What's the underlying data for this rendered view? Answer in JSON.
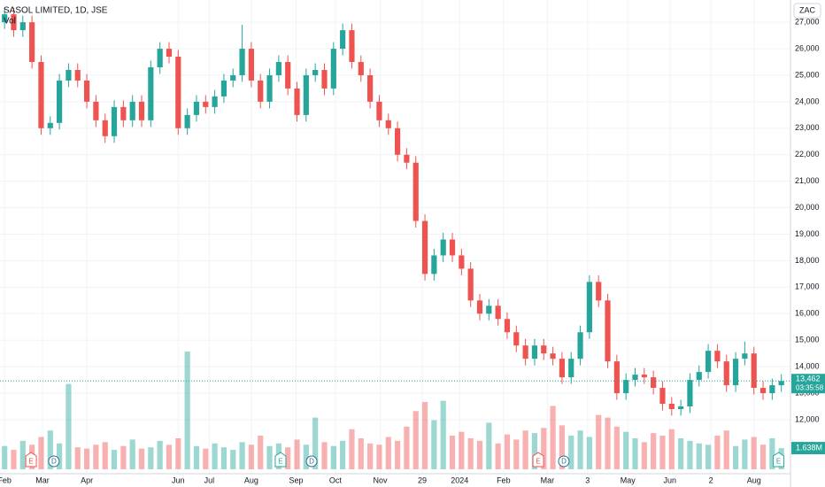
{
  "chart_data": {
    "type": "candlestick",
    "title": "SASOL LIMITED, 1D, JSE",
    "volume_title": "Vol",
    "currency": "ZAC",
    "up_color": "#26a69a",
    "down_color": "#ef5350",
    "grid": true,
    "ylim": [
      9960,
      27840
    ],
    "yticks": [
      {
        "value": 12000,
        "label": "12,000"
      },
      {
        "value": 13000,
        "label": "13,000"
      },
      {
        "value": 14000,
        "label": "14,000"
      },
      {
        "value": 15000,
        "label": "15,000"
      },
      {
        "value": 16000,
        "label": "16,000"
      },
      {
        "value": 17000,
        "label": "17,000"
      },
      {
        "value": 18000,
        "label": "18,000"
      },
      {
        "value": 19000,
        "label": "19,000"
      },
      {
        "value": 20000,
        "label": "20,000"
      },
      {
        "value": 21000,
        "label": "21,000"
      },
      {
        "value": 22000,
        "label": "22,000"
      },
      {
        "value": 23000,
        "label": "23,000"
      },
      {
        "value": 24000,
        "label": "24,000"
      },
      {
        "value": 25000,
        "label": "25,000"
      },
      {
        "value": 26000,
        "label": "26,000"
      },
      {
        "value": 27000,
        "label": "27,000"
      }
    ],
    "xlim": [
      -0.5,
      86
    ],
    "xticks": [
      {
        "value": 0.0,
        "label": "Feb"
      },
      {
        "value": 4.15,
        "label": "Mar"
      },
      {
        "value": 9.0,
        "label": "Apr"
      },
      {
        "value": 19.0,
        "label": "Jun"
      },
      {
        "value": 22.4,
        "label": "Jul"
      },
      {
        "value": 27.0,
        "label": "Aug"
      },
      {
        "value": 31.9,
        "label": "Sep"
      },
      {
        "value": 36.2,
        "label": "Oct"
      },
      {
        "value": 41.1,
        "label": "Nov"
      },
      {
        "value": 45.7,
        "label": "29"
      },
      {
        "value": 49.8,
        "label": "2024"
      },
      {
        "value": 54.6,
        "label": "Feb"
      },
      {
        "value": 59.4,
        "label": "Mar"
      },
      {
        "value": 63.8,
        "label": "3"
      },
      {
        "value": 68.2,
        "label": "May"
      },
      {
        "value": 72.8,
        "label": "Jun"
      },
      {
        "value": 77.3,
        "label": "2"
      },
      {
        "value": 82.0,
        "label": "Aug"
      }
    ],
    "open": [
      27000,
      27300,
      26700,
      27000,
      25500,
      23000,
      23200,
      24800,
      25200,
      24800,
      24000,
      23300,
      22700,
      23800,
      23300,
      24000,
      23300,
      25300,
      26000,
      25700,
      23000,
      23500,
      24000,
      23800,
      24200,
      24800,
      25000,
      26000,
      24800,
      24000,
      25000,
      25500,
      24500,
      23500,
      25000,
      25200,
      24500,
      26000,
      26700,
      25500,
      25000,
      24000,
      23300,
      23000,
      22000,
      21700,
      19500,
      17500,
      18200,
      18800,
      18200,
      17700,
      16500,
      16000,
      16300,
      15800,
      15300,
      14800,
      14300,
      14800,
      14500,
      14300,
      13600,
      14300,
      15300,
      17200,
      16500,
      14200,
      13000,
      13500,
      13700,
      13600,
      13200,
      12600,
      12400,
      12500,
      13500,
      13800,
      14600,
      14200,
      13300,
      14300,
      14500,
      13200,
      13000,
      13300
    ],
    "high": [
      27550,
      27550,
      27250,
      27250,
      25750,
      23450,
      25050,
      25450,
      25450,
      25050,
      24250,
      23550,
      24050,
      24050,
      24250,
      24250,
      25550,
      26250,
      26250,
      25950,
      23750,
      24250,
      24250,
      24450,
      25050,
      25250,
      26900,
      26250,
      25050,
      25250,
      25750,
      25750,
      24750,
      25250,
      25450,
      25450,
      26250,
      26950,
      26950,
      25750,
      25250,
      24250,
      23550,
      23250,
      22250,
      21950,
      19750,
      18450,
      19050,
      19050,
      18450,
      17950,
      16750,
      16550,
      16550,
      16050,
      15550,
      15050,
      15050,
      15050,
      14750,
      14550,
      14550,
      15550,
      17450,
      17450,
      16750,
      14450,
      13750,
      13950,
      13950,
      13850,
      13450,
      12850,
      12750,
      13750,
      14050,
      14850,
      14850,
      14450,
      14550,
      14950,
      14750,
      13450,
      13550,
      13712
    ],
    "low": [
      26750,
      26450,
      26450,
      25250,
      22750,
      22750,
      22950,
      24550,
      24550,
      23750,
      23050,
      22450,
      22450,
      23050,
      23050,
      23050,
      23050,
      25050,
      25450,
      22750,
      22750,
      23250,
      23550,
      23550,
      23950,
      24550,
      24750,
      24550,
      23750,
      23750,
      24750,
      24250,
      23250,
      23250,
      24750,
      24250,
      24250,
      25750,
      25250,
      24750,
      23750,
      23050,
      22750,
      21750,
      21450,
      19250,
      17250,
      17250,
      17950,
      17950,
      17450,
      16250,
      15750,
      15750,
      15550,
      15050,
      14550,
      14050,
      14050,
      14250,
      14050,
      13350,
      13350,
      14050,
      15050,
      16250,
      13950,
      12750,
      12750,
      13250,
      13350,
      12950,
      12350,
      12150,
      12150,
      12250,
      13250,
      13550,
      13950,
      13050,
      13050,
      14050,
      12950,
      12750,
      12750,
      13050
    ],
    "close": [
      27300,
      26700,
      27000,
      25500,
      23000,
      23200,
      24800,
      25200,
      24800,
      24000,
      23300,
      22700,
      23800,
      23300,
      24000,
      23300,
      25300,
      26000,
      25700,
      23000,
      23500,
      24000,
      23800,
      24200,
      24800,
      25000,
      26000,
      24800,
      24000,
      25000,
      25500,
      24500,
      23500,
      25000,
      25200,
      24500,
      26000,
      26700,
      25500,
      25000,
      24000,
      23300,
      23000,
      22000,
      21700,
      19500,
      17500,
      18200,
      18800,
      18200,
      17700,
      16500,
      16000,
      16300,
      15800,
      15300,
      14800,
      14300,
      14800,
      14500,
      14300,
      13600,
      14300,
      15300,
      17200,
      16500,
      14200,
      13000,
      13500,
      13700,
      13600,
      13200,
      12600,
      12400,
      12500,
      13500,
      13800,
      14600,
      14200,
      13300,
      14300,
      14500,
      13200,
      13000,
      13300,
      13462
    ],
    "volume_lim": [
      0,
      10
    ],
    "volume": [
      1.8,
      1.5,
      2.2,
      1.9,
      2.5,
      3.0,
      2.0,
      6.6,
      1.7,
      1.6,
      1.9,
      2.1,
      1.5,
      1.8,
      2.3,
      1.6,
      1.7,
      2.2,
      1.9,
      2.4,
      9.1,
      1.8,
      1.6,
      2.0,
      1.7,
      1.5,
      2.1,
      1.9,
      2.6,
      1.8,
      2.0,
      1.7,
      2.3,
      1.9,
      4.0,
      2.1,
      1.8,
      2.2,
      3.1,
      2.4,
      2.0,
      1.9,
      2.5,
      2.2,
      3.3,
      4.5,
      5.2,
      3.8,
      5.3,
      2.6,
      2.9,
      2.4,
      2.2,
      3.6,
      2.0,
      2.7,
      2.3,
      3.0,
      2.8,
      3.2,
      4.9,
      3.4,
      2.6,
      3.0,
      2.5,
      4.2,
      4.0,
      3.3,
      2.9,
      2.4,
      2.1,
      2.8,
      2.6,
      3.1,
      2.4,
      2.2,
      2.0,
      1.9,
      2.6,
      3.0,
      1.8,
      2.3,
      2.5,
      1.9,
      2.4,
      1.638
    ],
    "last_price": {
      "value": 13462,
      "label": "13,462"
    },
    "countdown": "03:35:58",
    "last_volume": {
      "value": 1.638,
      "label": "1.638M"
    },
    "events": [
      {
        "x": 2.9,
        "label": "E",
        "color": "#ef5350"
      },
      {
        "x": 5.4,
        "label": "D",
        "color": "#2a6f8f"
      },
      {
        "x": 30.2,
        "label": "E",
        "color": "#26a69a"
      },
      {
        "x": 33.6,
        "label": "D",
        "color": "#2a6f8f"
      },
      {
        "x": 58.4,
        "label": "E",
        "color": "#ef5350"
      },
      {
        "x": 61.2,
        "label": "D",
        "color": "#2a6f8f"
      },
      {
        "x": 84.7,
        "label": "E",
        "color": "#26a69a"
      }
    ]
  }
}
